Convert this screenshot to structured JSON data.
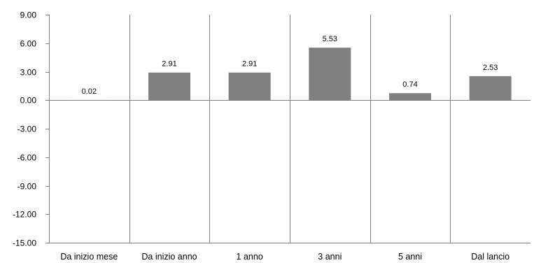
{
  "chart_data": {
    "type": "bar",
    "title": "",
    "xlabel": "",
    "ylabel": "",
    "categories": [
      "Da inizio mese",
      "Da inizio anno",
      "1 anno",
      "3 anni",
      "5 anni",
      "Dal lancio"
    ],
    "values": [
      0.02,
      2.91,
      2.91,
      5.53,
      0.74,
      2.53
    ],
    "value_labels": [
      "0.02",
      "2.91",
      "2.91",
      "5.53",
      "0.74",
      "2.53"
    ],
    "ylim": [
      -15,
      9
    ],
    "yticks": [
      9,
      6,
      3,
      0,
      -3,
      -6,
      -9,
      -12,
      -15
    ],
    "ytick_labels": [
      "9.00",
      "6.00",
      "3.00",
      "0.00",
      "-3.00",
      "-6.00",
      "-9.00",
      "-12.00",
      "-15.00"
    ],
    "grid": false,
    "category_separators": true,
    "legend": "none",
    "colors": {
      "bar": "#808080",
      "axis": "#808080",
      "separator": "#808080",
      "text": "#000000"
    }
  }
}
